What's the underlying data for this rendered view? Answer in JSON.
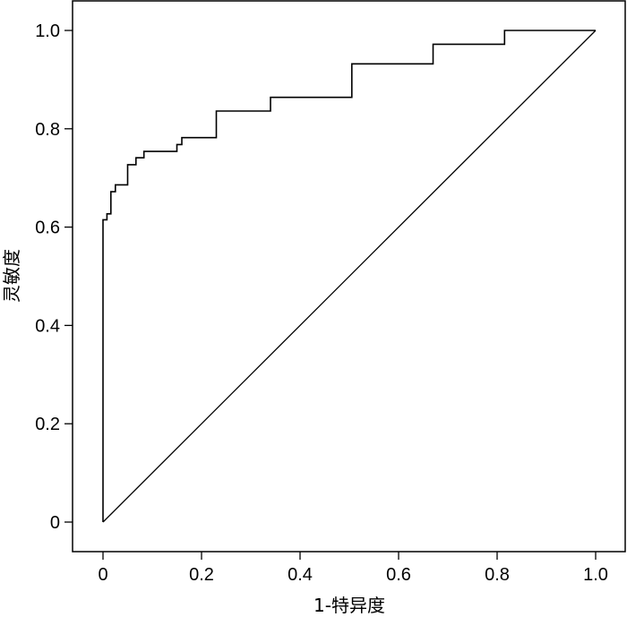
{
  "chart_data": {
    "type": "line",
    "title": "",
    "xlabel": "1-特异度",
    "ylabel": "灵敏度",
    "xlim": [
      0,
      1.0
    ],
    "ylim": [
      0,
      1.0
    ],
    "x_ticks": [
      "0",
      "0.2",
      "0.4",
      "0.6",
      "0.8",
      "1.0"
    ],
    "x_tick_values": [
      0,
      0.2,
      0.4,
      0.6,
      0.8,
      1.0
    ],
    "y_ticks": [
      "0",
      "0.2",
      "0.4",
      "0.6",
      "0.8",
      "1.0"
    ],
    "y_tick_values": [
      0,
      0.2,
      0.4,
      0.6,
      0.8,
      1.0
    ],
    "grid": false,
    "legend": "none",
    "series": [
      {
        "style": "step",
        "x": [
          0,
          0,
          0.008,
          0.008,
          0.016,
          0.016,
          0.025,
          0.025,
          0.034,
          0.034,
          0.05,
          0.05,
          0.058,
          0.058,
          0.067,
          0.067,
          0.075,
          0.075,
          0.083,
          0.083,
          0.15,
          0.15,
          0.16,
          0.16,
          0.23,
          0.23,
          0.34,
          0.34,
          0.505,
          0.505,
          0.67,
          0.67,
          0.815,
          0.815,
          1.0
        ],
        "y": [
          0,
          0.615,
          0.615,
          0.627,
          0.627,
          0.672,
          0.672,
          0.686,
          0.686,
          0.686,
          0.686,
          0.727,
          0.727,
          0.727,
          0.727,
          0.741,
          0.741,
          0.741,
          0.741,
          0.754,
          0.754,
          0.768,
          0.768,
          0.782,
          0.782,
          0.836,
          0.836,
          0.864,
          0.864,
          0.932,
          0.932,
          0.972,
          0.972,
          1.0,
          1.0
        ]
      },
      {
        "style": "reference",
        "x": [
          0,
          1.0
        ],
        "y": [
          0,
          1.0
        ]
      }
    ]
  }
}
